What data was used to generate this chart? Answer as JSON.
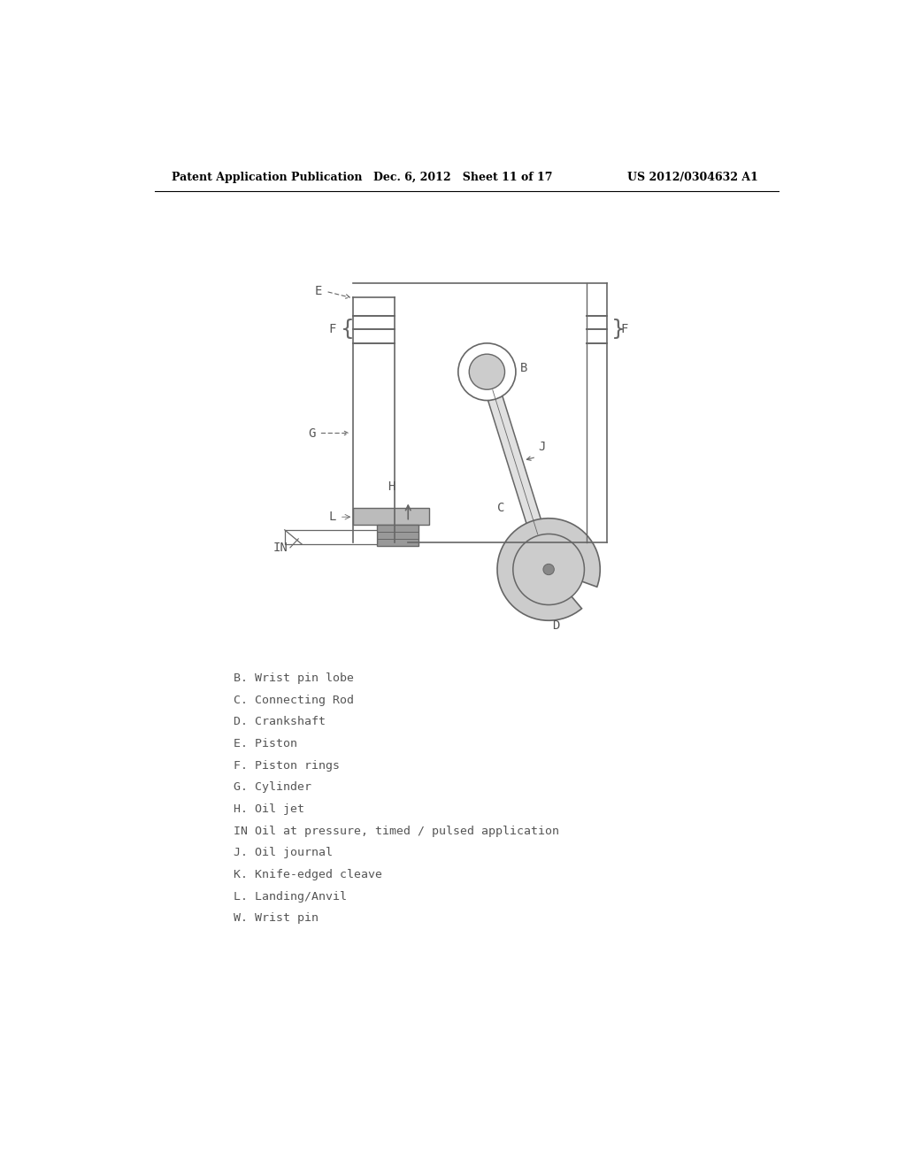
{
  "bg_color": "#ffffff",
  "header_left": "Patent Application Publication",
  "header_mid": "Dec. 6, 2012   Sheet 11 of 17",
  "header_right": "US 2012/0304632 A1",
  "legend": [
    "B. Wrist pin lobe",
    "C. Connecting Rod",
    "D. Crankshaft",
    "E. Piston",
    "F. Piston rings",
    "G. Cylinder",
    "H. Oil jet",
    "IN Oil at pressure, timed / pulsed application",
    "J. Oil journal",
    "K. Knife-edged cleave",
    "L. Landing/Anvil",
    "W. Wrist pin"
  ],
  "text_color": "#555555",
  "dark_color": "#666666",
  "fill_light": "#cccccc",
  "fill_mid": "#aaaaaa",
  "label_color": "#555555"
}
